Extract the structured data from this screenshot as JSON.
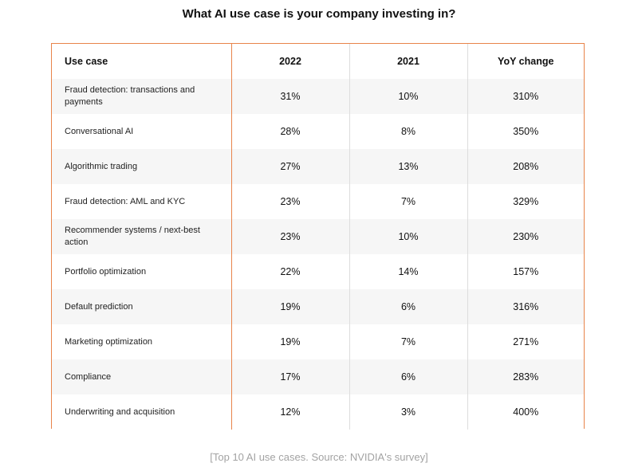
{
  "title": "What AI use case is your company investing in?",
  "table": {
    "headers": [
      "Use case",
      "2022",
      "2021",
      "YoY change"
    ],
    "rows": [
      {
        "use_case": "Fraud detection: transactions and payments",
        "y2022": "31%",
        "y2021": "10%",
        "yoy": "310%"
      },
      {
        "use_case": "Conversational AI",
        "y2022": "28%",
        "y2021": "8%",
        "yoy": "350%"
      },
      {
        "use_case": "Algorithmic trading",
        "y2022": "27%",
        "y2021": "13%",
        "yoy": "208%"
      },
      {
        "use_case": "Fraud detection: AML and KYC",
        "y2022": "23%",
        "y2021": "7%",
        "yoy": "329%"
      },
      {
        "use_case": "Recommender systems / next-best action",
        "y2022": "23%",
        "y2021": "10%",
        "yoy": "230%"
      },
      {
        "use_case": "Portfolio optimization",
        "y2022": "22%",
        "y2021": "14%",
        "yoy": "157%"
      },
      {
        "use_case": "Default prediction",
        "y2022": "19%",
        "y2021": "6%",
        "yoy": "316%"
      },
      {
        "use_case": "Marketing optimization",
        "y2022": "19%",
        "y2021": "7%",
        "yoy": "271%"
      },
      {
        "use_case": "Compliance",
        "y2022": "17%",
        "y2021": "6%",
        "yoy": "283%"
      },
      {
        "use_case": "Underwriting and acquisition",
        "y2022": "12%",
        "y2021": "3%",
        "yoy": "400%"
      }
    ]
  },
  "caption": "[Top 10 AI use cases. Source: NVIDIA's survey]",
  "colors": {
    "border_accent": "#e8844a",
    "row_shade": "#f6f6f6",
    "caption_text": "#a3a3a3"
  }
}
